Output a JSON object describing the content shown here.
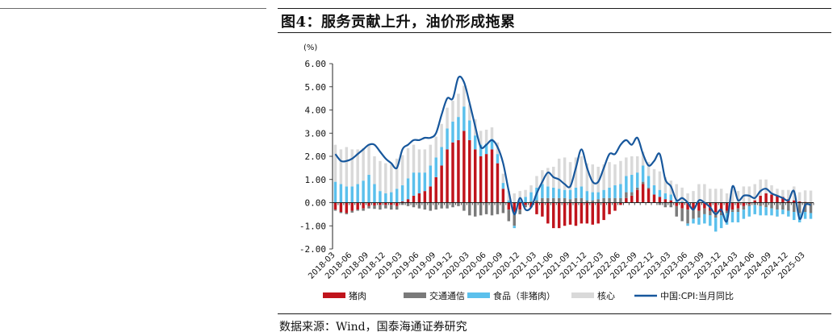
{
  "figure": {
    "title": "图4：服务贡献上升，油价形成拖累",
    "source": "数据来源：Wind，国泰海通证券研究"
  },
  "chart_data": {
    "type": "bar",
    "stacked": true,
    "yunit": "(%)",
    "ylim": [
      -2,
      6
    ],
    "yticks": [
      "6.00",
      "5.00",
      "4.00",
      "3.00",
      "2.00",
      "1.00",
      "0.00",
      "-1.00",
      "-2.00"
    ],
    "grid": false,
    "legend": "bottom",
    "x": [
      "2018-03",
      "2018-04",
      "2018-05",
      "2018-06",
      "2018-07",
      "2018-08",
      "2018-09",
      "2018-10",
      "2018-11",
      "2018-12",
      "2019-01",
      "2019-02",
      "2019-03",
      "2019-04",
      "2019-05",
      "2019-06",
      "2019-07",
      "2019-08",
      "2019-09",
      "2019-10",
      "2019-11",
      "2019-12",
      "2020-01",
      "2020-02",
      "2020-03",
      "2020-04",
      "2020-05",
      "2020-06",
      "2020-07",
      "2020-08",
      "2020-09",
      "2020-10",
      "2020-11",
      "2020-12",
      "2021-01",
      "2021-02",
      "2021-03",
      "2021-04",
      "2021-05",
      "2021-06",
      "2021-07",
      "2021-08",
      "2021-09",
      "2021-10",
      "2021-11",
      "2021-12",
      "2022-01",
      "2022-02",
      "2022-03",
      "2022-04",
      "2022-05",
      "2022-06",
      "2022-07",
      "2022-08",
      "2022-09",
      "2022-10",
      "2022-11",
      "2022-12",
      "2023-01",
      "2023-02",
      "2023-03",
      "2023-04",
      "2023-05",
      "2023-06",
      "2023-07",
      "2023-08",
      "2023-09",
      "2023-10",
      "2023-11",
      "2023-12",
      "2024-01",
      "2024-02",
      "2024-03",
      "2024-04",
      "2024-05",
      "2024-06",
      "2024-07",
      "2024-08",
      "2024-09",
      "2024-10",
      "2024-11",
      "2024-12",
      "2025-01",
      "2025-02",
      "2025-03",
      "2025-04"
    ],
    "xtick_labels": [
      "2018-03",
      "2018-06",
      "2018-09",
      "2018-12",
      "2019-03",
      "2019-06",
      "2019-09",
      "2019-12",
      "2020-03",
      "2020-06",
      "2020-09",
      "2020-12",
      "2021-03",
      "2021-06",
      "2021-09",
      "2021-12",
      "2022-03",
      "2022-06",
      "2022-09",
      "2022-12",
      "2023-03",
      "2023-06",
      "2023-09",
      "2023-12",
      "2024-03",
      "2024-06",
      "2024-09",
      "2024-12",
      "2025-03"
    ],
    "series": [
      {
        "name": "猪肉",
        "kind": "bar",
        "color": "#c0141c",
        "values": [
          -0.3,
          -0.4,
          -0.45,
          -0.35,
          -0.3,
          -0.25,
          -0.15,
          -0.12,
          -0.1,
          -0.1,
          -0.1,
          -0.15,
          0.05,
          0.15,
          0.3,
          0.4,
          0.5,
          0.7,
          1.1,
          1.6,
          2.3,
          2.6,
          2.7,
          3.1,
          2.7,
          2.3,
          2.0,
          2.1,
          2.3,
          1.7,
          0.6,
          -0.3,
          -0.4,
          -0.3,
          -0.1,
          -0.2,
          -0.5,
          -0.6,
          -0.9,
          -1.1,
          -1.1,
          -1.0,
          -0.95,
          -1.0,
          -0.9,
          -0.9,
          -0.95,
          -0.9,
          -0.75,
          -0.5,
          -0.35,
          -0.1,
          0.2,
          0.3,
          0.55,
          0.8,
          0.6,
          0.35,
          0.25,
          0.15,
          0.1,
          -0.15,
          -0.25,
          -0.3,
          -0.3,
          -0.35,
          -0.25,
          -0.35,
          -0.4,
          -0.4,
          -0.35,
          -0.3,
          -0.25,
          -0.15,
          -0.05,
          0.1,
          0.3,
          0.4,
          0.35,
          0.3,
          0.25,
          0.15,
          0.1,
          0.05,
          0.03,
          0.02
        ]
      },
      {
        "name": "交通通信",
        "kind": "bar",
        "color": "#7a7a7a",
        "values": [
          -0.05,
          -0.05,
          -0.05,
          -0.08,
          -0.05,
          -0.1,
          -0.1,
          -0.15,
          -0.2,
          -0.15,
          -0.2,
          -0.15,
          -0.1,
          -0.15,
          -0.2,
          -0.25,
          -0.3,
          -0.35,
          -0.3,
          -0.25,
          -0.25,
          -0.2,
          -0.15,
          -0.35,
          -0.55,
          -0.6,
          -0.55,
          -0.5,
          -0.55,
          -0.5,
          -0.45,
          -0.5,
          -0.6,
          -0.2,
          -0.1,
          0.05,
          0.1,
          0.2,
          0.2,
          0.2,
          0.2,
          0.2,
          0.15,
          0.2,
          0.2,
          0.1,
          0.1,
          0.15,
          0.2,
          0.2,
          0.2,
          0.2,
          0.25,
          0.15,
          0.1,
          0.1,
          0.05,
          0.0,
          -0.1,
          -0.2,
          -0.2,
          -0.45,
          -0.55,
          -0.6,
          -0.4,
          -0.3,
          -0.25,
          -0.2,
          -0.25,
          -0.15,
          -0.1,
          -0.1,
          -0.15,
          -0.15,
          -0.1,
          -0.1,
          -0.15,
          -0.2,
          -0.25,
          -0.3,
          -0.3,
          -0.35,
          -0.4,
          -0.45,
          -0.4,
          -0.45
        ]
      },
      {
        "name": "食品（非猪肉）",
        "kind": "bar",
        "color": "#5bc0ec",
        "values": [
          0.9,
          0.8,
          0.7,
          0.7,
          0.8,
          0.95,
          1.2,
          0.8,
          0.5,
          0.4,
          0.45,
          0.6,
          0.7,
          0.9,
          1.0,
          0.9,
          0.8,
          0.9,
          0.85,
          0.8,
          0.9,
          0.9,
          1.0,
          1.05,
          0.85,
          0.6,
          0.5,
          0.45,
          0.45,
          0.4,
          0.25,
          0.1,
          -0.1,
          0.1,
          0.25,
          0.4,
          0.55,
          0.6,
          0.5,
          0.45,
          0.4,
          0.35,
          0.4,
          0.45,
          0.5,
          0.4,
          0.35,
          0.3,
          0.35,
          0.45,
          0.55,
          0.6,
          0.7,
          0.75,
          0.65,
          0.7,
          0.5,
          0.4,
          0.3,
          0.25,
          0.25,
          0.1,
          0.05,
          -0.1,
          -0.2,
          -0.3,
          -0.4,
          -0.45,
          -0.6,
          -0.55,
          -0.5,
          -0.45,
          -0.45,
          -0.4,
          -0.45,
          -0.4,
          -0.4,
          -0.35,
          -0.3,
          -0.3,
          -0.2,
          -0.25,
          -0.35,
          -0.4,
          -0.3,
          -0.25
        ]
      },
      {
        "name": "核心",
        "kind": "bar",
        "color": "#d9d9d9",
        "values": [
          1.6,
          1.5,
          1.7,
          1.6,
          1.5,
          1.4,
          1.3,
          1.2,
          1.3,
          1.3,
          1.2,
          1.3,
          1.3,
          1.3,
          1.2,
          1.0,
          1.0,
          0.9,
          0.9,
          1.0,
          0.9,
          0.9,
          1.0,
          0.9,
          0.7,
          0.7,
          0.6,
          0.6,
          0.5,
          0.5,
          0.4,
          0.4,
          0.4,
          0.4,
          0.3,
          0.3,
          0.5,
          0.6,
          0.8,
          0.9,
          1.3,
          1.4,
          1.2,
          1.3,
          1.3,
          1.2,
          1.2,
          1.1,
          1.1,
          1.1,
          0.9,
          1.0,
          0.8,
          0.8,
          0.7,
          0.6,
          0.6,
          0.7,
          0.8,
          0.7,
          0.6,
          0.7,
          0.6,
          0.4,
          0.5,
          0.8,
          0.8,
          0.6,
          0.6,
          0.6,
          0.4,
          0.6,
          0.5,
          0.7,
          0.7,
          0.7,
          0.7,
          0.6,
          0.4,
          0.3,
          0.3,
          0.4,
          0.6,
          0.4,
          0.5,
          0.5
        ]
      },
      {
        "name": "中国:CPI:当月同比",
        "kind": "line",
        "color": "#17579c",
        "values": [
          2.1,
          1.8,
          1.8,
          1.9,
          2.1,
          2.3,
          2.5,
          2.5,
          2.2,
          1.9,
          1.7,
          1.5,
          2.3,
          2.5,
          2.7,
          2.7,
          2.8,
          2.8,
          3.0,
          3.8,
          4.5,
          4.5,
          5.4,
          5.2,
          4.3,
          3.3,
          2.4,
          2.5,
          2.7,
          2.4,
          1.7,
          0.5,
          -0.5,
          0.2,
          -0.3,
          -0.2,
          0.4,
          0.9,
          1.3,
          1.1,
          1.0,
          0.8,
          0.7,
          1.5,
          2.3,
          1.5,
          0.9,
          0.9,
          1.5,
          2.1,
          2.1,
          2.5,
          2.7,
          2.5,
          2.8,
          2.1,
          1.6,
          1.8,
          2.1,
          1.0,
          0.7,
          0.1,
          0.2,
          0.0,
          -0.3,
          0.1,
          0.0,
          -0.2,
          -0.5,
          -0.3,
          -0.8,
          0.7,
          0.1,
          0.3,
          0.3,
          0.2,
          0.5,
          0.6,
          0.4,
          0.3,
          0.2,
          0.1,
          0.5,
          -0.7,
          -0.1,
          -0.1
        ]
      }
    ]
  }
}
